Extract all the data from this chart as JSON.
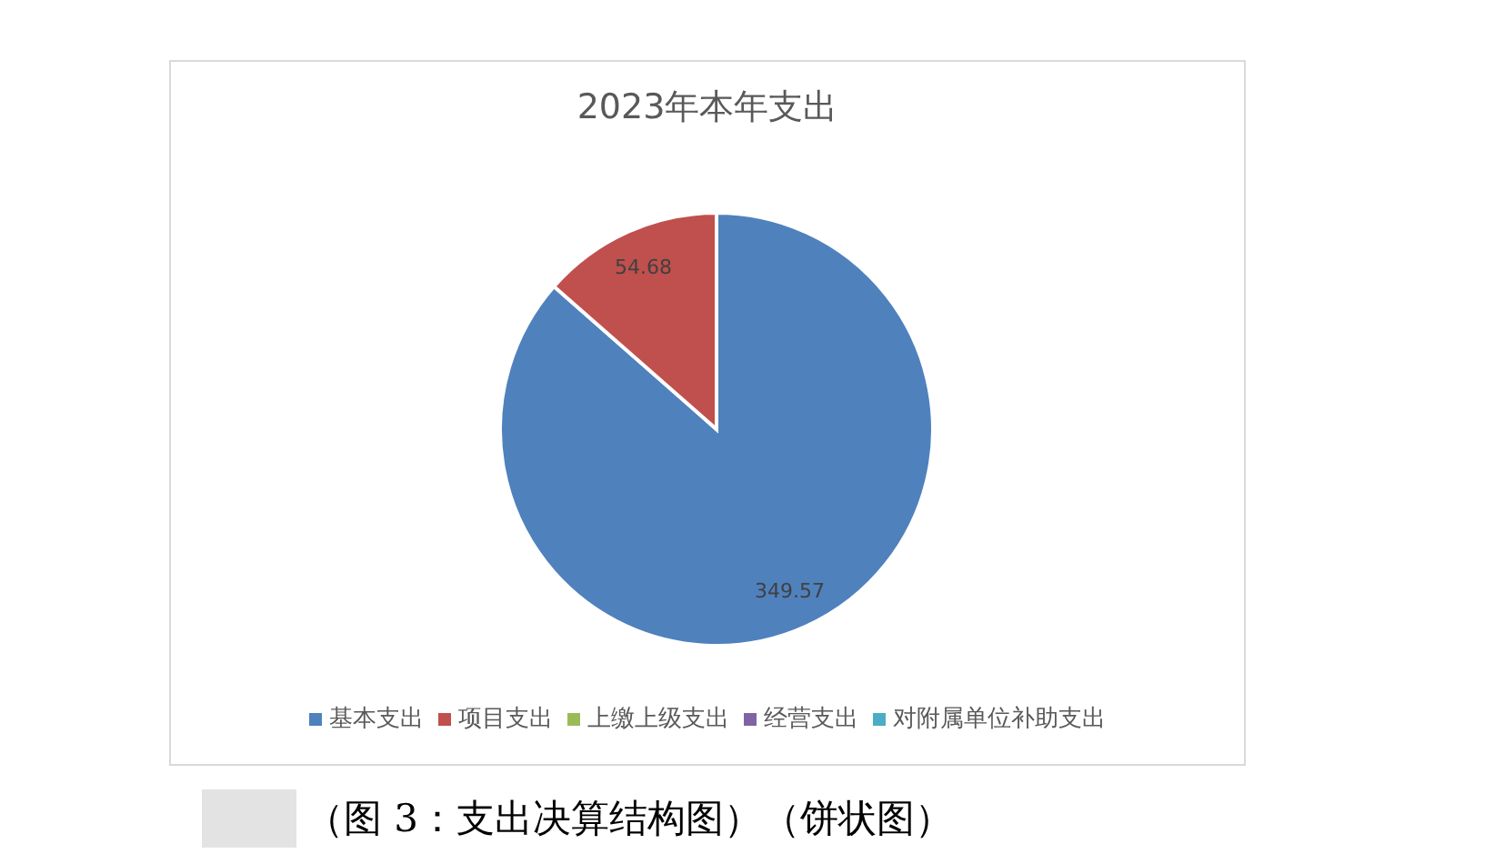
{
  "chart_data": {
    "type": "pie",
    "title": "2023年本年支出",
    "categories": [
      "基本支出",
      "项目支出",
      "上缴上级支出",
      "经营支出",
      "对附属单位补助支出"
    ],
    "values": [
      349.57,
      54.68,
      0,
      0,
      0
    ],
    "colors": [
      "#4f81bd",
      "#c0504d",
      "#9bbb59",
      "#8064a2",
      "#4bacc6"
    ],
    "value_labels": [
      "349.57",
      "54.68",
      null,
      null,
      null
    ],
    "legend": "bottom",
    "annotations": [
      "（图 3：支出决算结构图）（饼状图）"
    ]
  }
}
